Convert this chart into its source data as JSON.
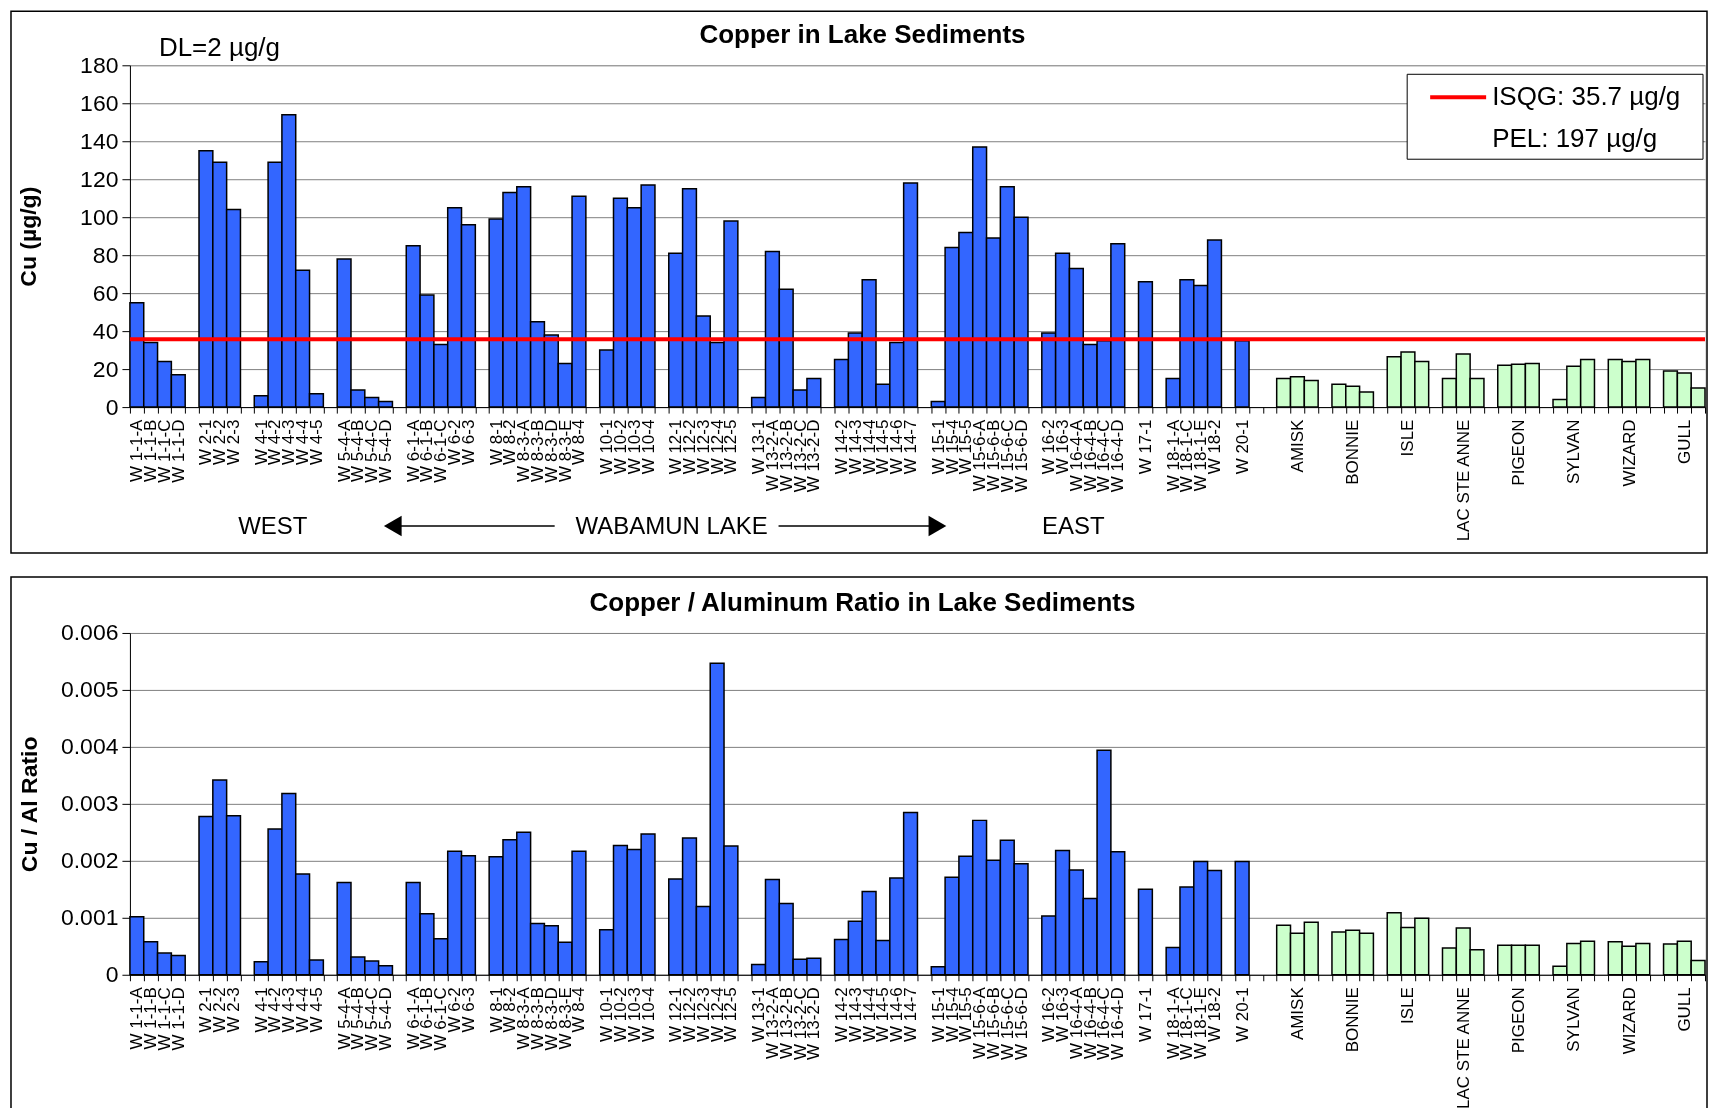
{
  "chart_data": [
    {
      "type": "bar",
      "title": "Copper in Lake Sediments",
      "ylabel": "Cu (µg/g)",
      "categories": [
        "W 1-1-A",
        "W 1-1-B",
        "W 1-1-C",
        "W 1-1-D",
        null,
        "W 2-1",
        "W 2-2",
        "W 2-3",
        null,
        "W 4-1",
        "W 4-2",
        "W 4-3",
        "W 4-4",
        "W 4-5",
        null,
        "W 5-4-A",
        "W 5-4-B",
        "W 5-4-C",
        "W 5-4-D",
        null,
        "W 6-1-A",
        "W 6-1-B",
        "W 6-1-C",
        "W 6-2",
        "W 6-3",
        null,
        "W 8-1",
        "W 8-2",
        "W 8-3-A",
        "W 8-3-B",
        "W 8-3-D",
        "W 8-3-E",
        "W 8-4",
        null,
        "W 10-1",
        "W 10-2",
        "W 10-3",
        "W 10-4",
        null,
        "W 12-1",
        "W 12-2",
        "W 12-3",
        "W 12-4",
        "W 12-5",
        null,
        "W 13-1",
        "W 13-2-A",
        "W 13-2-B",
        "W 13-2-C",
        "W 13-2-D",
        null,
        "W 14-2",
        "W 14-3",
        "W 14-4",
        "W 14-5",
        "W 14-6",
        "W 14-7",
        null,
        "W 15-1",
        "W 15-4",
        "W 15-5",
        "W 15-6-A",
        "W 15-6-B",
        "W 15-6-C",
        "W 15-6-D",
        null,
        "W 16-2",
        "W 16-3",
        "W 16-4-A",
        "W 16-4-B",
        "W 16-4-C",
        "W 16-4-D",
        null,
        "W 17-1",
        null,
        "W 18-1-A",
        "W 18-1-C",
        "W 18-1-E",
        "W 18-2",
        null,
        "W 20-1",
        null,
        null,
        null,
        "AMISK",
        null,
        null,
        null,
        "BONNIE",
        null,
        null,
        null,
        "ISLE",
        null,
        null,
        null,
        "LAC STE ANNE",
        null,
        null,
        null,
        "PIGEON",
        null,
        null,
        null,
        "SYLVAN",
        null,
        null,
        null,
        "WIZARD",
        null,
        null,
        null,
        "GULL",
        null
      ],
      "series": [
        {
          "color": "#3366ff",
          "values": [
            55,
            34,
            24,
            17,
            null,
            135,
            129,
            104,
            null,
            6,
            129,
            154,
            72,
            7,
            null,
            78,
            9,
            5,
            3,
            null,
            85,
            59,
            33,
            105,
            96,
            null,
            99,
            113,
            116,
            45,
            38,
            23,
            111,
            null,
            30,
            110,
            105,
            117,
            null,
            81,
            115,
            48,
            34,
            98,
            null,
            5,
            82,
            62,
            9,
            15,
            null,
            25,
            39,
            67,
            12,
            34,
            118,
            null,
            3,
            84,
            92,
            137,
            89,
            116,
            100,
            null,
            39,
            81,
            73,
            33,
            35,
            86,
            null,
            66,
            null,
            15,
            67,
            64,
            88,
            null,
            35,
            null,
            null,
            null,
            null,
            null,
            null,
            null,
            null,
            null,
            null,
            null,
            null,
            null,
            null,
            null,
            null,
            null,
            null,
            null,
            null,
            null,
            null,
            null,
            null,
            null,
            null,
            null,
            null,
            null,
            null,
            null,
            null,
            null
          ]
        },
        {
          "color": "#ccffcc",
          "values": [
            null,
            null,
            null,
            null,
            null,
            null,
            null,
            null,
            null,
            null,
            null,
            null,
            null,
            null,
            null,
            null,
            null,
            null,
            null,
            null,
            null,
            null,
            null,
            null,
            null,
            null,
            null,
            null,
            null,
            null,
            null,
            null,
            null,
            null,
            null,
            null,
            null,
            null,
            null,
            null,
            null,
            null,
            null,
            null,
            null,
            null,
            null,
            null,
            null,
            null,
            null,
            null,
            null,
            null,
            null,
            null,
            null,
            null,
            null,
            null,
            null,
            null,
            null,
            null,
            null,
            null,
            null,
            null,
            null,
            null,
            null,
            null,
            null,
            null,
            null,
            null,
            null,
            null,
            null,
            null,
            null,
            null,
            null,
            15,
            16,
            14,
            null,
            12,
            11,
            8,
            null,
            26.5,
            29,
            24,
            null,
            15,
            28,
            15,
            null,
            22,
            22.5,
            23,
            null,
            4,
            21.5,
            25,
            null,
            25,
            24,
            25,
            null,
            19,
            18,
            10
          ]
        }
      ],
      "ylim": [
        0,
        180
      ],
      "yticks": [
        0,
        20,
        40,
        60,
        80,
        100,
        120,
        140,
        160,
        180
      ],
      "grid": "y",
      "legend": "top right",
      "ref_lines": [
        {
          "axis": "y",
          "value": 35.7,
          "label": "ISQG: 35.7 µg/g",
          "color": "#ff0000"
        }
      ],
      "annotations": [
        "DL=2 µg/g",
        "PEL: 197 µg/g",
        "WEST",
        "WABAMUN LAKE",
        "EAST"
      ]
    },
    {
      "type": "bar",
      "title": "Copper / Aluminum Ratio in Lake Sediments",
      "ylabel": "Cu / Al Ratio",
      "categories": [
        "W 1-1-A",
        "W 1-1-B",
        "W 1-1-C",
        "W 1-1-D",
        null,
        "W 2-1",
        "W 2-2",
        "W 2-3",
        null,
        "W 4-1",
        "W 4-2",
        "W 4-3",
        "W 4-4",
        "W 4-5",
        null,
        "W 5-4-A",
        "W 5-4-B",
        "W 5-4-C",
        "W 5-4-D",
        null,
        "W 6-1-A",
        "W 6-1-B",
        "W 6-1-C",
        "W 6-2",
        "W 6-3",
        null,
        "W 8-1",
        "W 8-2",
        "W 8-3-A",
        "W 8-3-B",
        "W 8-3-D",
        "W 8-3-E",
        "W 8-4",
        null,
        "W 10-1",
        "W 10-2",
        "W 10-3",
        "W 10-4",
        null,
        "W 12-1",
        "W 12-2",
        "W 12-3",
        "W 12-4",
        "W 12-5",
        null,
        "W 13-1",
        "W 13-2-A",
        "W 13-2-B",
        "W 13-2-C",
        "W 13-2-D",
        null,
        "W 14-2",
        "W 14-3",
        "W 14-4",
        "W 14-5",
        "W 14-6",
        "W 14-7",
        null,
        "W 15-1",
        "W 15-4",
        "W 15-5",
        "W 15-6-A",
        "W 15-6-B",
        "W 15-6-C",
        "W 15-6-D",
        null,
        "W 16-2",
        "W 16-3",
        "W 16-4-A",
        "W 16-4-B",
        "W 16-4-C",
        "W 16-4-D",
        null,
        "W 17-1",
        null,
        "W 18-1-A",
        "W 18-1-C",
        "W 18-1-E",
        "W 18-2",
        null,
        "W 20-1",
        null,
        null,
        null,
        "AMISK",
        null,
        null,
        null,
        "BONNIE",
        null,
        null,
        null,
        "ISLE",
        null,
        null,
        null,
        "LAC STE ANNE",
        null,
        null,
        null,
        "PIGEON",
        null,
        null,
        null,
        "SYLVAN",
        null,
        null,
        null,
        "WIZARD",
        null,
        null,
        null,
        "GULL",
        null
      ],
      "series": [
        {
          "color": "#3366ff",
          "values": [
            0.00102,
            0.00058,
            0.00038,
            0.00034,
            null,
            0.00278,
            0.00342,
            0.00279,
            null,
            0.00023,
            0.00256,
            0.00318,
            0.00177,
            0.00026,
            null,
            0.00162,
            0.00031,
            0.00024,
            0.00016,
            null,
            0.00162,
            0.00107,
            0.00063,
            0.00217,
            0.00209,
            null,
            0.00207,
            0.00237,
            0.0025,
            0.0009,
            0.00086,
            0.00057,
            0.00217,
            null,
            0.00079,
            0.00227,
            0.0022,
            0.00247,
            null,
            0.00168,
            0.0024,
            0.0012,
            0.00547,
            0.00226,
            null,
            0.00018,
            0.00167,
            0.00125,
            0.00027,
            0.00029,
            null,
            0.00062,
            0.00094,
            0.00146,
            0.0006,
            0.0017,
            0.00285,
            null,
            0.00014,
            0.00171,
            0.00208,
            0.00271,
            0.00201,
            0.00236,
            0.00195,
            null,
            0.00103,
            0.00218,
            0.00184,
            0.00134,
            0.00394,
            0.00216,
            null,
            0.0015,
            null,
            0.00048,
            0.00154,
            0.00199,
            0.00183,
            null,
            0.00199,
            null,
            null,
            null,
            null,
            null,
            null,
            null,
            null,
            null,
            null,
            null,
            null,
            null,
            null,
            null,
            null,
            null,
            null,
            null,
            null,
            null,
            null,
            null,
            null,
            null,
            null,
            null,
            null,
            null,
            null,
            null,
            null,
            null
          ]
        },
        {
          "color": "#ccffcc",
          "values": [
            null,
            null,
            null,
            null,
            null,
            null,
            null,
            null,
            null,
            null,
            null,
            null,
            null,
            null,
            null,
            null,
            null,
            null,
            null,
            null,
            null,
            null,
            null,
            null,
            null,
            null,
            null,
            null,
            null,
            null,
            null,
            null,
            null,
            null,
            null,
            null,
            null,
            null,
            null,
            null,
            null,
            null,
            null,
            null,
            null,
            null,
            null,
            null,
            null,
            null,
            null,
            null,
            null,
            null,
            null,
            null,
            null,
            null,
            null,
            null,
            null,
            null,
            null,
            null,
            null,
            null,
            null,
            null,
            null,
            null,
            null,
            null,
            null,
            null,
            null,
            null,
            null,
            null,
            null,
            null,
            null,
            null,
            null,
            0.00087,
            0.00073,
            0.00092,
            null,
            0.00075,
            0.00078,
            0.00073,
            null,
            0.00109,
            0.00083,
            0.00099,
            null,
            0.00047,
            0.00082,
            0.00044,
            null,
            0.00052,
            0.00052,
            0.00052,
            null,
            0.00015,
            0.00055,
            0.00059,
            null,
            0.00058,
            0.0005,
            0.00055,
            null,
            0.00054,
            0.00059,
            0.00025
          ]
        }
      ],
      "ylim": [
        0,
        0.006
      ],
      "yticks": [
        0,
        0.001,
        0.002,
        0.003,
        0.004,
        0.005,
        0.006
      ],
      "grid": "y"
    }
  ]
}
